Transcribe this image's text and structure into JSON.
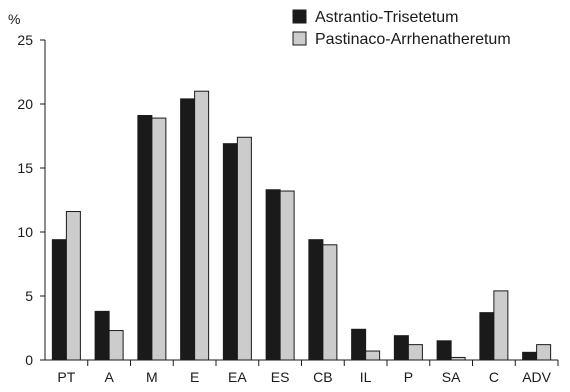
{
  "chart_data": {
    "type": "bar",
    "title": "",
    "xlabel": "",
    "ylabel": "%",
    "ylim": [
      0,
      25
    ],
    "yticks": [
      0,
      5,
      10,
      15,
      20,
      25
    ],
    "grid": false,
    "legend_position": "top-right",
    "categories": [
      "PT",
      "A",
      "M",
      "E",
      "EA",
      "ES",
      "CB",
      "IL",
      "P",
      "SA",
      "C",
      "ADV"
    ],
    "series": [
      {
        "name": "Astrantio-Trisetetum",
        "color": "#1a1a1a",
        "values": [
          9.4,
          3.8,
          19.1,
          20.4,
          16.9,
          13.3,
          9.4,
          2.4,
          1.9,
          1.5,
          3.7,
          0.6
        ]
      },
      {
        "name": "Pastinaco-Arrhenatheretum",
        "color": "#cccccc",
        "values": [
          11.6,
          2.3,
          18.9,
          21.0,
          17.4,
          13.2,
          9.0,
          0.7,
          1.2,
          0.2,
          5.4,
          1.2
        ]
      }
    ]
  }
}
